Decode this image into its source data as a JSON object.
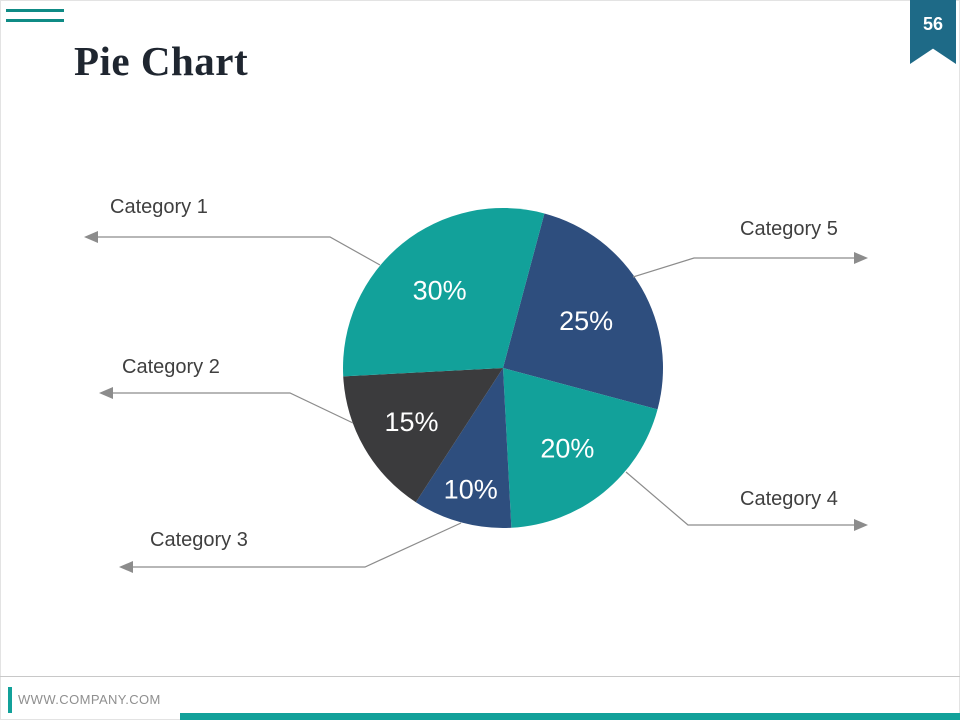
{
  "slide": {
    "title": "Pie Chart",
    "page_number": "56",
    "footer_url": "WWW.COMPANY.COM"
  },
  "colors": {
    "teal": "#12a19a",
    "navy": "#2e4e7e",
    "charcoal": "#3b3b3d",
    "badge_blue": "#1e6a87",
    "accent_line_teal": "#0f8b85",
    "leader_line_gray": "#8c8c8c"
  },
  "chart_data": {
    "type": "pie",
    "title": "Pie Chart",
    "unit": "%",
    "start_angle_deg_clockwise_from_top": 15,
    "legend_position": "callout-labels-with-arrows",
    "slices": [
      {
        "label": "Category 5",
        "value": 25,
        "color": "#2e4e7e",
        "label_r": 0.6
      },
      {
        "label": "Category 4",
        "value": 20,
        "color": "#12a19a",
        "label_r": 0.64
      },
      {
        "label": "Category 3",
        "value": 10,
        "color": "#2e4e7e",
        "label_r": 0.78
      },
      {
        "label": "Category 2",
        "value": 15,
        "color": "#3b3b3d",
        "label_r": 0.66
      },
      {
        "label": "Category 1",
        "value": 30,
        "color": "#12a19a",
        "label_r": 0.63
      }
    ]
  }
}
